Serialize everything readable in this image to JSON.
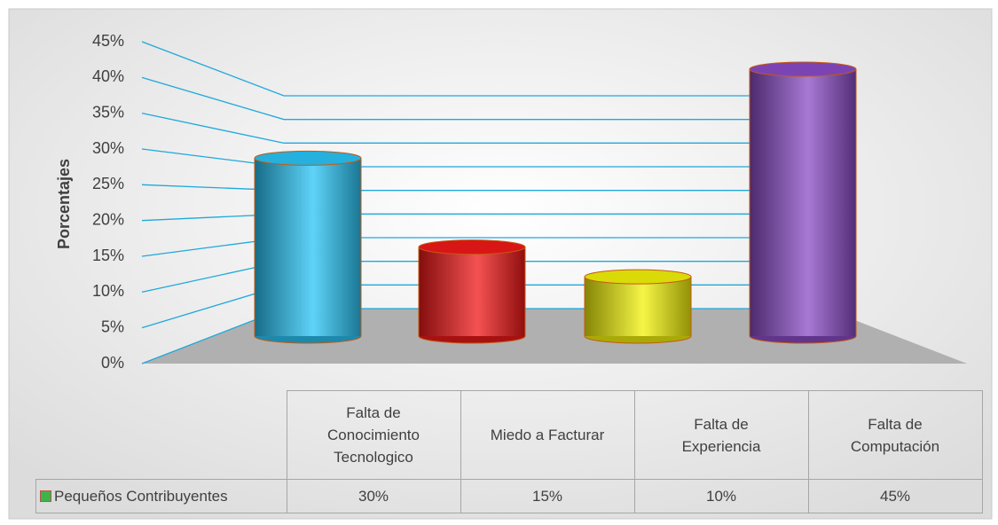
{
  "chart_data": {
    "type": "bar",
    "y_label": "Porcentajes",
    "categories": [
      "Falta de Conocimiento Tecnologico",
      "Miedo a Facturar",
      "Falta de Experiencia",
      "Falta de Computación"
    ],
    "series": [
      {
        "name": "Pequeños Contribuyentes",
        "color": "#3cb44b",
        "colors": [
          "#29c4f5",
          "#f01818",
          "#f2f20a",
          "#8a4cc6"
        ],
        "values": [
          30,
          15,
          10,
          45
        ],
        "value_labels": [
          "30%",
          "15%",
          "10%",
          "45%"
        ]
      }
    ],
    "ylim": [
      0,
      45
    ],
    "yticks": [
      {
        "value": 0,
        "label": "0%"
      },
      {
        "value": 5,
        "label": "5%"
      },
      {
        "value": 10,
        "label": "10%"
      },
      {
        "value": 15,
        "label": "15%"
      },
      {
        "value": 20,
        "label": "20%"
      },
      {
        "value": 25,
        "label": "25%"
      },
      {
        "value": 30,
        "label": "30%"
      },
      {
        "value": 35,
        "label": "35%"
      },
      {
        "value": 40,
        "label": "40%"
      },
      {
        "value": 45,
        "label": "45%"
      }
    ],
    "grid": true
  }
}
